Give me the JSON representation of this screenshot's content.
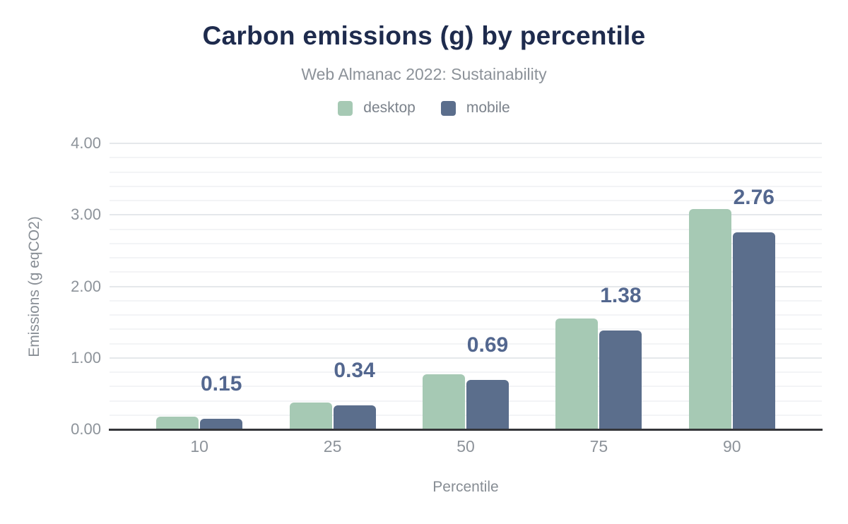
{
  "chart_data": {
    "type": "bar",
    "title": "Carbon emissions (g) by percentile",
    "subtitle": "Web Almanac 2022: Sustainability",
    "xlabel": "Percentile",
    "ylabel": "Emissions (g eqCO2)",
    "categories": [
      "10",
      "25",
      "50",
      "75",
      "90"
    ],
    "series": [
      {
        "name": "desktop",
        "color": "#a6c9b4",
        "values": [
          0.18,
          0.38,
          0.77,
          1.55,
          3.08
        ]
      },
      {
        "name": "mobile",
        "color": "#5b6e8c",
        "values": [
          0.15,
          0.34,
          0.69,
          1.38,
          2.76
        ]
      }
    ],
    "data_labels": {
      "series": "mobile",
      "values": [
        "0.15",
        "0.34",
        "0.69",
        "1.38",
        "2.76"
      ]
    },
    "ylim": [
      0,
      4
    ],
    "yticks": [
      "0.00",
      "1.00",
      "2.00",
      "3.00",
      "4.00"
    ],
    "grid": {
      "minor_step": 0.2,
      "major_step": 1.0,
      "on": true
    },
    "legend_position": "top"
  },
  "colors": {
    "title": "#1e2b4d",
    "subtitle": "#8c9299",
    "legend_text": "#7b828b",
    "axis_text": "#8d939a",
    "axis_title": "#878d94",
    "data_label": "#53678f",
    "desktop": "#a6c9b4",
    "mobile": "#5b6e8c",
    "baseline": "#35363a",
    "grid_major": "#e5e8eb",
    "grid_minor": "#f3f4f6"
  }
}
